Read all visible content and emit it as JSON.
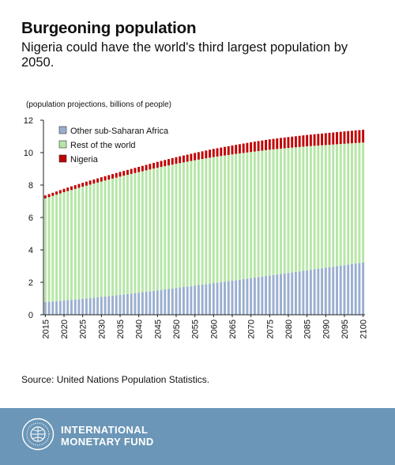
{
  "header": {
    "title": "Burgeoning population",
    "subtitle": "Nigeria could have the world's third largest population by 2050."
  },
  "source": "Source: United Nations Population Statistics.",
  "footer": {
    "org_line1": "INTERNATIONAL",
    "org_line2": "MONETARY FUND",
    "seal_icon": "imf-seal-icon"
  },
  "colors": {
    "other_ssa": "#9aaecf",
    "rest_world": "#b5e6a6",
    "nigeria": "#c00000",
    "footer_bg": "#6b96b7"
  },
  "chart_data": {
    "type": "bar",
    "stacked": true,
    "title": "",
    "ylabel": "(population projections, billions of people)",
    "xlabel": "",
    "ylim": [
      0,
      12
    ],
    "yticks": [
      0,
      2,
      4,
      6,
      8,
      10,
      12
    ],
    "grid": false,
    "legend_position": "top-left",
    "x_range": [
      2015,
      2100
    ],
    "x_tick_labels": [
      "2015",
      "2020",
      "2025",
      "2030",
      "2035",
      "2040",
      "2045",
      "2050",
      "2055",
      "2060",
      "2065",
      "2070",
      "2075",
      "2080",
      "2085",
      "2090",
      "2095",
      "2100"
    ],
    "anchor_years": [
      2015,
      2020,
      2025,
      2030,
      2035,
      2040,
      2045,
      2050,
      2055,
      2060,
      2065,
      2070,
      2075,
      2080,
      2085,
      2090,
      2095,
      2100
    ],
    "series": [
      {
        "name": "Other sub-Saharan Africa",
        "color": "#9aaecf",
        "values": [
          0.78,
          0.88,
          0.98,
          1.1,
          1.22,
          1.36,
          1.5,
          1.65,
          1.8,
          1.95,
          2.1,
          2.26,
          2.42,
          2.58,
          2.74,
          2.9,
          3.06,
          3.22
        ]
      },
      {
        "name": "Rest of the world",
        "color": "#b5e6a6",
        "values": [
          6.4,
          6.68,
          6.92,
          7.12,
          7.3,
          7.44,
          7.57,
          7.66,
          7.73,
          7.78,
          7.79,
          7.78,
          7.76,
          7.71,
          7.65,
          7.57,
          7.49,
          7.4
        ]
      },
      {
        "name": "Nigeria",
        "color": "#c00000",
        "values": [
          0.18,
          0.21,
          0.24,
          0.26,
          0.29,
          0.32,
          0.36,
          0.41,
          0.45,
          0.5,
          0.55,
          0.6,
          0.64,
          0.67,
          0.7,
          0.73,
          0.76,
          0.79
        ]
      }
    ]
  }
}
